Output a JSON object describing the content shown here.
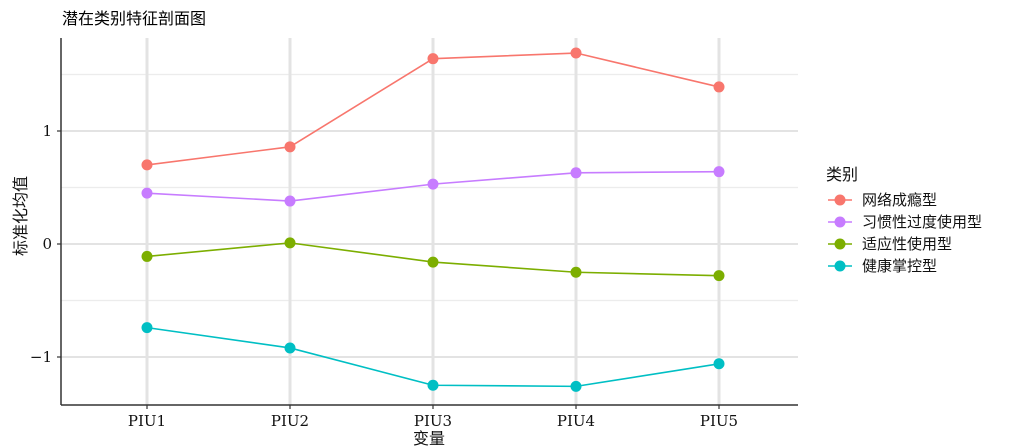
{
  "chart_data": {
    "type": "line",
    "title": "潜在类别特征剖面图",
    "xlabel": "变量",
    "ylabel": "标准化均值",
    "categories": [
      "PIU1",
      "PIU2",
      "PIU3",
      "PIU4",
      "PIU5"
    ],
    "ylim": [
      -1.4,
      1.9
    ],
    "yticks": [
      {
        "value": 1,
        "label": "1"
      },
      {
        "value": 0,
        "label": "0"
      },
      {
        "value": -1,
        "label": "−1"
      }
    ],
    "grid": true,
    "legend": {
      "title": "类别",
      "position": "right"
    },
    "series": [
      {
        "name": "网络成瘾型",
        "color": "#F8766D",
        "values": [
          0.7,
          0.86,
          1.64,
          1.69,
          1.39
        ]
      },
      {
        "name": "习惯性过度使用型",
        "color": "#C77CFF",
        "values": [
          0.45,
          0.38,
          0.53,
          0.63,
          0.64
        ]
      },
      {
        "name": "适应性使用型",
        "color": "#7CAE00",
        "values": [
          -0.11,
          0.01,
          -0.16,
          -0.25,
          -0.28
        ]
      },
      {
        "name": "健康掌控型",
        "color": "#00BFC4",
        "values": [
          -0.74,
          -0.92,
          -1.25,
          -1.26,
          -1.06
        ]
      }
    ]
  }
}
